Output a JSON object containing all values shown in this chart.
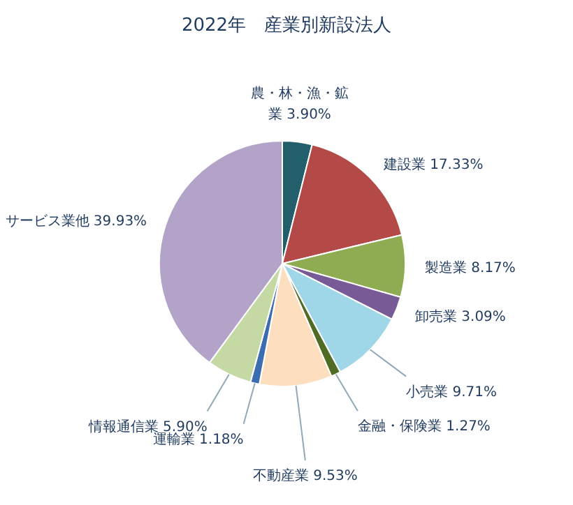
{
  "chart_data": {
    "type": "pie",
    "title": "2022年　産業別新設法人",
    "categories": [
      "農・林・漁・鉱業",
      "建設業",
      "製造業",
      "卸売業",
      "小売業",
      "金融・保険業",
      "不動産業",
      "運輸業",
      "情報通信業",
      "サービス業他"
    ],
    "values": [
      3.9,
      17.33,
      8.17,
      3.09,
      9.71,
      1.27,
      9.53,
      1.18,
      5.9,
      39.93
    ],
    "value_labels": [
      "3.90%",
      "17.33%",
      "8.17%",
      "3.09%",
      "9.71%",
      "1.27%",
      "9.53%",
      "1.18%",
      "5.90%",
      "39.93%"
    ],
    "colors": [
      "#235e6b",
      "#b34a48",
      "#8fac52",
      "#775a96",
      "#9fd6e8",
      "#4f6b24",
      "#fddfbf",
      "#3c6db0",
      "#c5d9a4",
      "#b3a3c8"
    ]
  }
}
